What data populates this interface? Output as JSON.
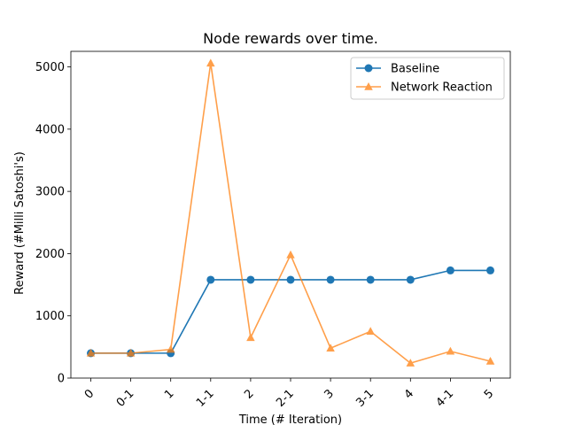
{
  "chart_data": {
    "type": "line",
    "title": "Node rewards over time.",
    "xlabel": "Time (# Iteration)",
    "ylabel": "Reward (#Milli Satoshi's)",
    "categories": [
      "0",
      "0-1",
      "1",
      "1-1",
      "2",
      "2-1",
      "3",
      "3-1",
      "4",
      "4-1",
      "5"
    ],
    "ylim": [
      0,
      5250
    ],
    "yticks": [
      0,
      1000,
      2000,
      3000,
      4000,
      5000
    ],
    "grid": false,
    "legend_position": "top-right",
    "series": [
      {
        "name": "Baseline",
        "color": "#1f77b4",
        "marker": "circle",
        "values": [
          400,
          400,
          400,
          1580,
          1580,
          1580,
          1580,
          1580,
          1580,
          1730,
          1730
        ]
      },
      {
        "name": "Network Reaction",
        "color": "#ff7f0e",
        "marker": "triangle",
        "values": [
          400,
          400,
          460,
          5060,
          650,
          1980,
          480,
          750,
          240,
          430,
          270
        ]
      }
    ]
  }
}
